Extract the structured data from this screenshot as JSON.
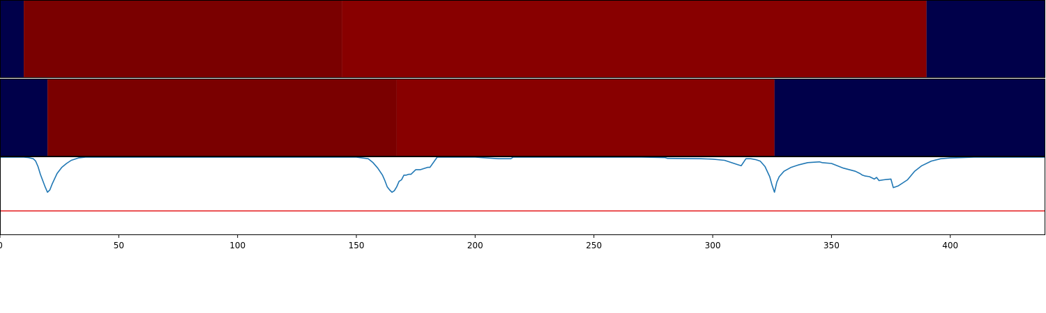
{
  "chart_data": [
    {
      "type": "heatmap",
      "segments": [
        {
          "x0": 0,
          "x1": 10,
          "color": "#00004a"
        },
        {
          "x0": 10,
          "x1": 144,
          "color": "#7a0000"
        },
        {
          "x0": 144,
          "x1": 390,
          "color": "#880000"
        },
        {
          "x0": 390,
          "x1": 440,
          "color": "#00004a"
        }
      ]
    },
    {
      "type": "heatmap",
      "segments": [
        {
          "x0": 0,
          "x1": 20,
          "color": "#00004a"
        },
        {
          "x0": 20,
          "x1": 167,
          "color": "#7a0000"
        },
        {
          "x0": 167,
          "x1": 326,
          "color": "#880000"
        },
        {
          "x0": 326,
          "x1": 440,
          "color": "#00004a"
        }
      ]
    },
    {
      "type": "line",
      "xlim": [
        0,
        440
      ],
      "ylim": [
        0,
        1
      ],
      "x_ticks": [
        0,
        50,
        100,
        150,
        200,
        250,
        300,
        350,
        400
      ],
      "x_tick_labels": [
        "0",
        "50",
        "100",
        "150",
        "200",
        "250",
        "300",
        "350",
        "400"
      ],
      "threshold": 0.31,
      "colors": {
        "line": "#1f77b4",
        "threshold": "#e41a1c"
      },
      "x": [
        0,
        2,
        4,
        6,
        8,
        10,
        12,
        14,
        15,
        16,
        17,
        18,
        19,
        20,
        21,
        22,
        24,
        26,
        28,
        30,
        33,
        36,
        40,
        50,
        60,
        80,
        100,
        120,
        140,
        150,
        155,
        157,
        159,
        161,
        162,
        163,
        164,
        165,
        166,
        167,
        168,
        169,
        170,
        171,
        172,
        173,
        175,
        176,
        177,
        180,
        181,
        184,
        185,
        200,
        210,
        215,
        216,
        230,
        250,
        270,
        280,
        281,
        295,
        300,
        305,
        307,
        309,
        310,
        311,
        312,
        314,
        316,
        318,
        320,
        322,
        324,
        325,
        326,
        327,
        328,
        330,
        333,
        336,
        340,
        345,
        346,
        350,
        355,
        360,
        362,
        363,
        364,
        366,
        368,
        369,
        370,
        372,
        375,
        376,
        378,
        380,
        382,
        385,
        388,
        392,
        396,
        400,
        405,
        410,
        420,
        430,
        440
      ],
      "y": [
        1.0,
        1.0,
        1.0,
        1.0,
        1.0,
        1.0,
        0.995,
        0.98,
        0.95,
        0.88,
        0.78,
        0.7,
        0.62,
        0.55,
        0.58,
        0.66,
        0.79,
        0.87,
        0.92,
        0.96,
        0.99,
        1.0,
        1.0,
        1.0,
        1.0,
        1.0,
        1.0,
        1.0,
        1.0,
        1.0,
        0.98,
        0.93,
        0.86,
        0.77,
        0.7,
        0.62,
        0.58,
        0.55,
        0.57,
        0.62,
        0.69,
        0.71,
        0.77,
        0.77,
        0.78,
        0.78,
        0.84,
        0.84,
        0.84,
        0.87,
        0.87,
        1.0,
        1.0,
        1.0,
        0.98,
        0.98,
        1.0,
        1.0,
        1.0,
        1.0,
        0.995,
        0.985,
        0.98,
        0.975,
        0.96,
        0.94,
        0.92,
        0.91,
        0.9,
        0.89,
        0.98,
        0.98,
        0.97,
        0.95,
        0.88,
        0.75,
        0.64,
        0.55,
        0.68,
        0.75,
        0.82,
        0.87,
        0.9,
        0.93,
        0.94,
        0.93,
        0.92,
        0.86,
        0.82,
        0.79,
        0.77,
        0.76,
        0.75,
        0.72,
        0.74,
        0.7,
        0.71,
        0.72,
        0.61,
        0.63,
        0.67,
        0.71,
        0.82,
        0.89,
        0.95,
        0.98,
        0.99,
        0.995,
        1.0,
        1.0,
        1.0,
        1.0
      ]
    }
  ]
}
